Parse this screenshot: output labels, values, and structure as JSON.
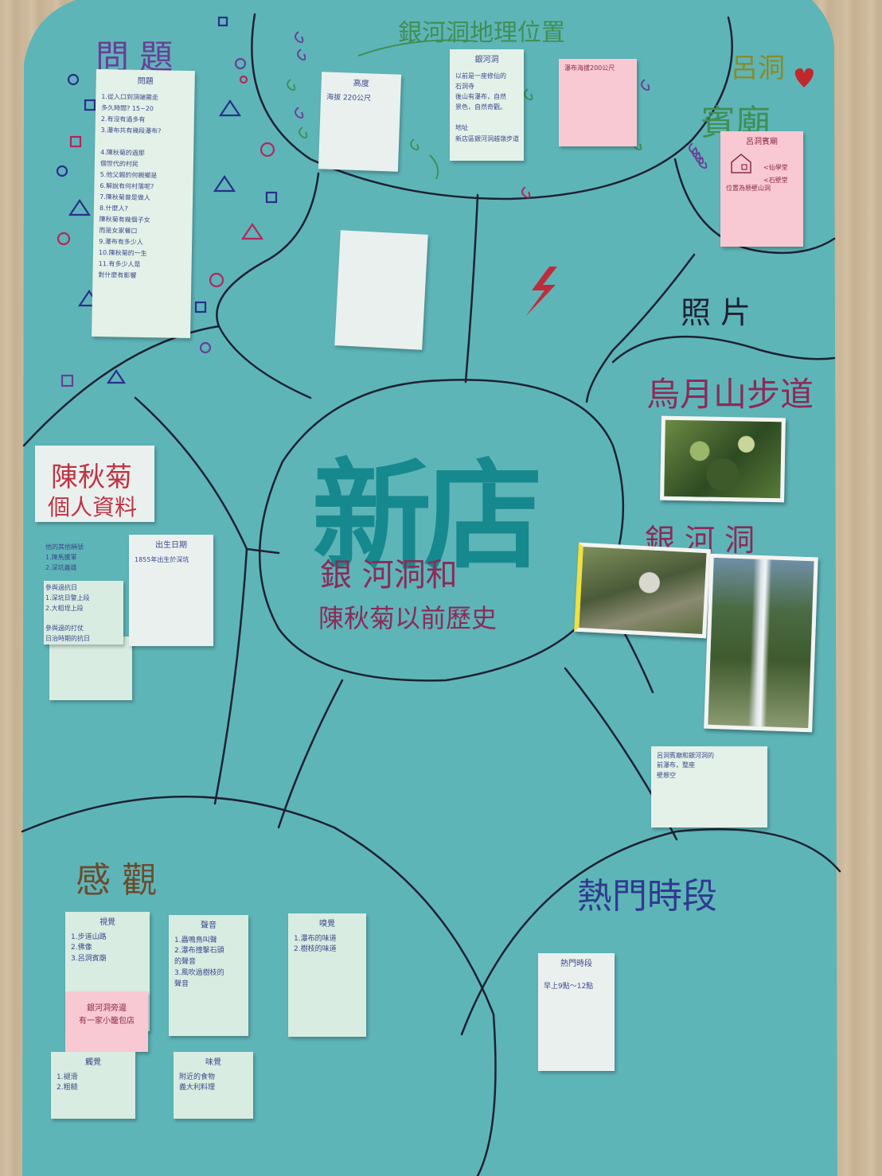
{
  "poster": {
    "center_title": "新店",
    "center_subtitle_line1": "銀 河洞和",
    "center_subtitle_line2": "陳秋菊以前歷史"
  },
  "sections": {
    "questions_heading": "問 題",
    "location_heading": "銀河洞地理位置",
    "temple_heading_line1": "呂洞",
    "temple_heading_line2": "賓廟",
    "photos_heading": "照 片",
    "trail_heading": "烏月山步道",
    "cave_heading": "銀 河 洞",
    "person_heading_line1": "陳秋菊",
    "person_heading_line2": "個人資料",
    "senses_heading": "感 觀",
    "peak_heading": "熱門時段"
  },
  "notes": {
    "questions": {
      "title": "問題",
      "lines": [
        "1.從入口到頂端需走",
        "多久時間? 15~20",
        "2.有沒有過多有",
        "3.瀑布共有幾段瀑布?",
        "",
        "4.陳秋菊的過那",
        "個世代的村民",
        "5.他父親的何親鄉是",
        "6.解說有何村落呢?",
        "7.陳秋菊曾是做人",
        "8.什麼人?",
        "陳秋菊有幾個子女",
        "而是女家餐口",
        "9.瀑布有多少人",
        "10.陳秋菊的一生",
        "11.有多少人是",
        "對什麼有影響"
      ]
    },
    "height": {
      "title": "高度",
      "lines": [
        "海拔 220公尺"
      ]
    },
    "cave_info": {
      "title": "銀河洞",
      "lines": [
        "以前是一座修仙的",
        "石洞寺",
        "後山有瀑布，自然",
        "景色，自然奇觀。",
        "",
        "地址",
        "新店區銀河洞越嶺步道"
      ]
    },
    "waterfall": {
      "lines": [
        "瀑布海拔200公尺"
      ]
    },
    "temple_info": {
      "title": "呂洞賓廟",
      "lines": [
        "<仙學堂",
        "<石壁堂",
        "位置為懸壁山洞"
      ]
    },
    "person_tab": {
      "lines": [
        "他的其他稱號",
        "1.陳馬騰軍",
        "2.深坑義雄",
        "",
        "參與過抗日",
        "1.深坑日警上段",
        "2.大稻埕上段",
        "",
        "參與過的打仗",
        "日治時期的抗日"
      ]
    },
    "birth": {
      "title": "出生日期",
      "lines": [
        "1855年出生於深坑"
      ]
    },
    "cave_note": {
      "lines": [
        "呂洞賓廟和銀河洞的",
        "前瀑布，整座",
        "壁懸空"
      ]
    },
    "sight": {
      "title": "視覺",
      "lines": [
        "1.步道山路",
        "2.佛像",
        "3.呂洞賓廟"
      ]
    },
    "sound": {
      "title": "聲音",
      "lines": [
        "1.蟲鳴鳥叫聲",
        "2.瀑布撞擊石頭",
        "的聲音",
        "3.風吹過樹枝的",
        "聲音"
      ]
    },
    "smell": {
      "title": "嗅覺",
      "lines": [
        "1.瀑布的味道",
        "2.樹枝的味道"
      ]
    },
    "shop": {
      "lines": [
        "銀河洞旁邊",
        "有一家小籠包店"
      ]
    },
    "touch": {
      "title": "觸覺",
      "lines": [
        "1.褪滑",
        "2.粗糙"
      ]
    },
    "taste": {
      "title": "味覺",
      "lines": [
        "附近的食物",
        "義大利料理"
      ]
    },
    "peak": {
      "title": "熱門時段",
      "lines": [
        "早上9點～12點"
      ]
    }
  },
  "colors": {
    "paper": "#5eb5b8",
    "line": "#1d2133",
    "title_teal": "#16898e",
    "title_purple": "#4b238f",
    "subtitle": "#8b2b58",
    "heading_purple": "#6a3f97",
    "heading_green": "#3f8f54",
    "heading_red": "#c03445",
    "heading_blue": "#2f3a8f"
  }
}
